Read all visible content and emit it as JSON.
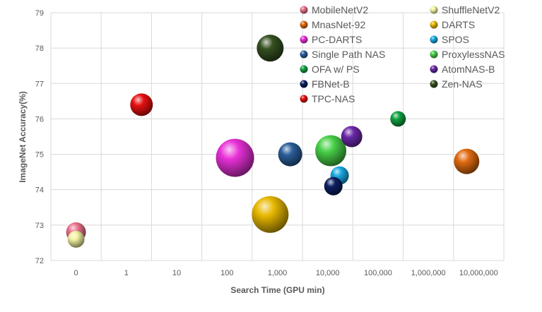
{
  "chart_data": {
    "type": "scatter",
    "xlabel": "Search Time (GPU min)",
    "ylabel": "ImageNet Accuracy(%)",
    "x_scale": "log",
    "x_ticks": [
      "0",
      "1",
      "10",
      "100",
      "1,000",
      "10,000",
      "100,000",
      "1,000,000",
      "10,000,000"
    ],
    "ylim": [
      72,
      79
    ],
    "y_ticks": [
      "72",
      "73",
      "74",
      "75",
      "76",
      "77",
      "78",
      "79"
    ],
    "grid": true,
    "legend_position": "top-right",
    "series": [
      {
        "name": "MobileNetV2",
        "x": 0,
        "y": 72.8,
        "size": 14,
        "color": "#e8708a"
      },
      {
        "name": "ShuffleNetV2",
        "x": 0,
        "y": 72.6,
        "size": 12,
        "color": "#f2f2a0"
      },
      {
        "name": "MnasNet-92",
        "x": 5760000,
        "y": 74.8,
        "size": 18,
        "color": "#e06a10"
      },
      {
        "name": "DARTS",
        "x": 720,
        "y": 73.3,
        "size": 26,
        "color": "#e8b800"
      },
      {
        "name": "PC-DARTS",
        "x": 144,
        "y": 74.9,
        "size": 27,
        "color": "#e830d8"
      },
      {
        "name": "SPOS",
        "x": 17280,
        "y": 74.4,
        "size": 13,
        "color": "#18a8e0"
      },
      {
        "name": "Single Path NAS",
        "x": 1800,
        "y": 75.0,
        "size": 17,
        "color": "#2a5e9a"
      },
      {
        "name": "ProxylessNAS",
        "x": 11520,
        "y": 75.1,
        "size": 22,
        "color": "#48d048"
      },
      {
        "name": "OFA w/ PS",
        "x": 250000,
        "y": 76.0,
        "size": 11,
        "color": "#10a040"
      },
      {
        "name": "AtomNAS-B",
        "x": 30000,
        "y": 75.5,
        "size": 15,
        "color": "#6a28a8"
      },
      {
        "name": "FBNet-B",
        "x": 12960,
        "y": 74.1,
        "size": 13,
        "color": "#0c1f60"
      },
      {
        "name": "Zen-NAS",
        "x": 720,
        "y": 78.0,
        "size": 19,
        "color": "#355020"
      },
      {
        "name": "TPC-NAS",
        "x": 2,
        "y": 76.4,
        "size": 16,
        "color": "#e81010"
      }
    ],
    "legend": [
      "MobileNetV2",
      "ShuffleNetV2",
      "MnasNet-92",
      "DARTS",
      "PC-DARTS",
      "SPOS",
      "Single Path NAS",
      "ProxylessNAS",
      "OFA w/ PS",
      "AtomNAS-B",
      "FBNet-B",
      "Zen-NAS",
      "TPC-NAS"
    ]
  }
}
